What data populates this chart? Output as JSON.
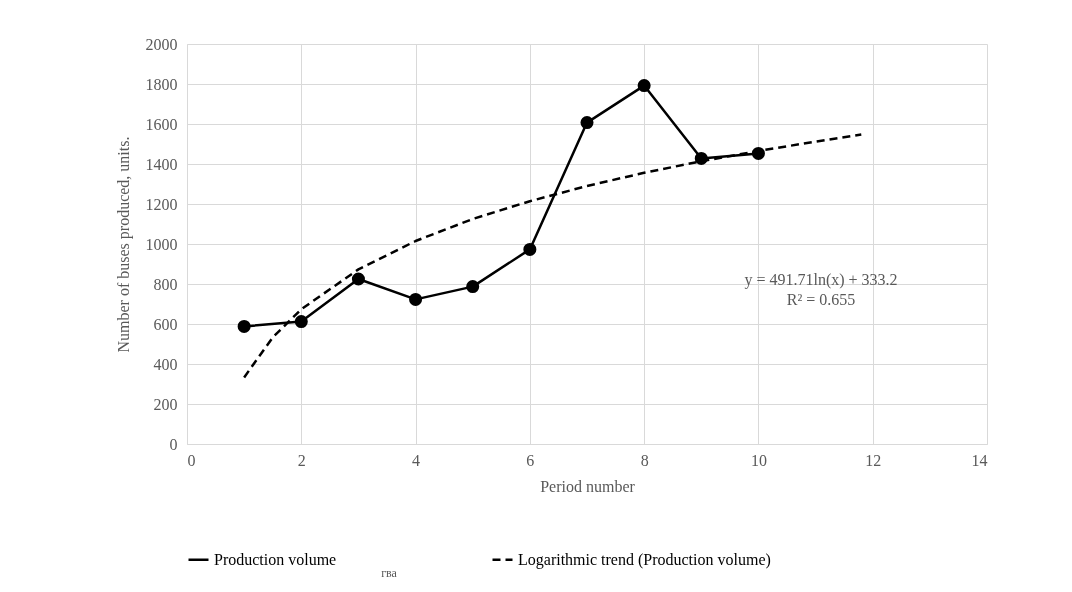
{
  "chart_data": {
    "type": "line",
    "xlabel": "Period number",
    "ylabel": "Number of buses produced, units.",
    "xlim": [
      0,
      14
    ],
    "xticks": [
      0,
      2,
      4,
      6,
      8,
      10,
      12,
      14
    ],
    "ylim": [
      0,
      2000
    ],
    "yticks": [
      0,
      200,
      400,
      600,
      800,
      1000,
      1200,
      1400,
      1600,
      1800,
      2000
    ],
    "grid": true,
    "legend": "bottom",
    "series": [
      {
        "name": "Production volume",
        "color": "#000000",
        "marker": "circle",
        "line_style": "solid",
        "x": [
          1,
          2,
          3,
          4,
          5,
          6,
          7,
          8,
          9,
          10
        ],
        "values": [
          588,
          612,
          825,
          723,
          787,
          973,
          1607,
          1792,
          1428,
          1453
        ]
      },
      {
        "name": "Logarithmic trend (Production volume)",
        "color": "#000000",
        "marker": "none",
        "line_style": "dashed",
        "x": [
          1,
          1.5,
          2,
          3,
          4,
          5,
          6,
          7,
          8,
          9,
          10,
          11,
          11.8
        ],
        "values": [
          333,
          533,
          674,
          873,
          1015,
          1125,
          1214,
          1290,
          1356,
          1414,
          1465,
          1512,
          1547
        ]
      }
    ],
    "annotations": [
      "y = 491.71ln(x) + 333.2\nR² = 0.655",
      "гва"
    ]
  }
}
